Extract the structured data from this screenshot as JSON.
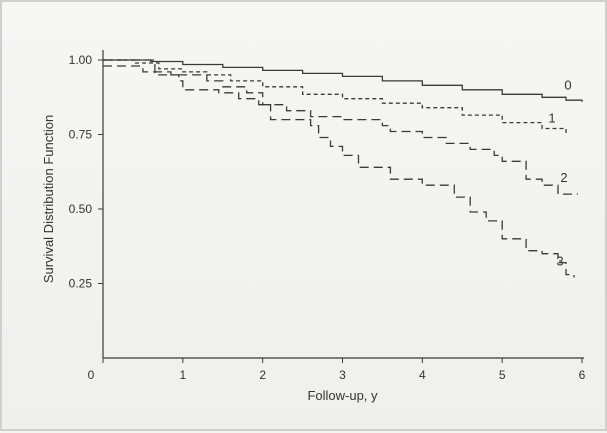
{
  "chart_data": {
    "type": "line",
    "subtype": "step",
    "title": "",
    "xlabel": "Follow-up, y",
    "ylabel": "Survival Distribution Function",
    "xlim": [
      0,
      6
    ],
    "ylim": [
      0,
      1.0
    ],
    "x_ticks": [
      "0",
      "1",
      "2",
      "3",
      "4",
      "5",
      "6"
    ],
    "y_ticks": [
      "0.25",
      "0.50",
      "0.75",
      "1.00"
    ],
    "grid": false,
    "legend": "inline curve labels",
    "series": [
      {
        "name": "0",
        "dash": "solid",
        "points": [
          [
            0.0,
            1.0
          ],
          [
            0.6,
            0.995
          ],
          [
            1.0,
            0.985
          ],
          [
            1.5,
            0.975
          ],
          [
            2.0,
            0.965
          ],
          [
            2.5,
            0.955
          ],
          [
            3.0,
            0.945
          ],
          [
            3.5,
            0.93
          ],
          [
            4.0,
            0.915
          ],
          [
            4.5,
            0.9
          ],
          [
            5.0,
            0.885
          ],
          [
            5.5,
            0.875
          ],
          [
            5.8,
            0.865
          ],
          [
            6.0,
            0.86
          ]
        ]
      },
      {
        "name": "1",
        "dash": "short",
        "points": [
          [
            0.0,
            1.0
          ],
          [
            0.4,
            0.99
          ],
          [
            0.7,
            0.97
          ],
          [
            1.0,
            0.96
          ],
          [
            1.3,
            0.95
          ],
          [
            1.6,
            0.93
          ],
          [
            2.0,
            0.91
          ],
          [
            2.5,
            0.885
          ],
          [
            3.0,
            0.87
          ],
          [
            3.5,
            0.855
          ],
          [
            4.0,
            0.84
          ],
          [
            4.5,
            0.815
          ],
          [
            5.0,
            0.79
          ],
          [
            5.5,
            0.77
          ],
          [
            5.8,
            0.75
          ]
        ]
      },
      {
        "name": "2",
        "dash": "long",
        "points": [
          [
            0.0,
            0.98
          ],
          [
            0.35,
            0.98
          ],
          [
            0.5,
            0.96
          ],
          [
            0.85,
            0.95
          ],
          [
            1.0,
            0.95
          ],
          [
            1.3,
            0.93
          ],
          [
            1.5,
            0.91
          ],
          [
            1.8,
            0.89
          ],
          [
            2.0,
            0.85
          ],
          [
            2.3,
            0.83
          ],
          [
            2.6,
            0.81
          ],
          [
            3.0,
            0.8
          ],
          [
            3.5,
            0.78
          ],
          [
            3.6,
            0.76
          ],
          [
            4.0,
            0.74
          ],
          [
            4.3,
            0.72
          ],
          [
            4.6,
            0.7
          ],
          [
            4.9,
            0.68
          ],
          [
            5.0,
            0.66
          ],
          [
            5.3,
            0.6
          ],
          [
            5.5,
            0.58
          ],
          [
            5.7,
            0.55
          ],
          [
            5.95,
            0.55
          ]
        ]
      },
      {
        "name": "3",
        "dash": "long",
        "points": [
          [
            0.0,
            1.0
          ],
          [
            0.5,
            1.0
          ],
          [
            0.65,
            0.95
          ],
          [
            0.95,
            0.93
          ],
          [
            1.0,
            0.9
          ],
          [
            1.45,
            0.89
          ],
          [
            1.7,
            0.87
          ],
          [
            1.95,
            0.85
          ],
          [
            2.1,
            0.8
          ],
          [
            2.6,
            0.78
          ],
          [
            2.7,
            0.74
          ],
          [
            2.85,
            0.71
          ],
          [
            3.0,
            0.68
          ],
          [
            3.2,
            0.64
          ],
          [
            3.6,
            0.6
          ],
          [
            4.0,
            0.58
          ],
          [
            4.3,
            0.58
          ],
          [
            4.4,
            0.54
          ],
          [
            4.6,
            0.49
          ],
          [
            4.8,
            0.46
          ],
          [
            5.0,
            0.4
          ],
          [
            5.3,
            0.36
          ],
          [
            5.5,
            0.35
          ],
          [
            5.7,
            0.32
          ],
          [
            5.8,
            0.28
          ],
          [
            5.9,
            0.27
          ]
        ]
      }
    ],
    "line_color": "#3a3a3a"
  }
}
